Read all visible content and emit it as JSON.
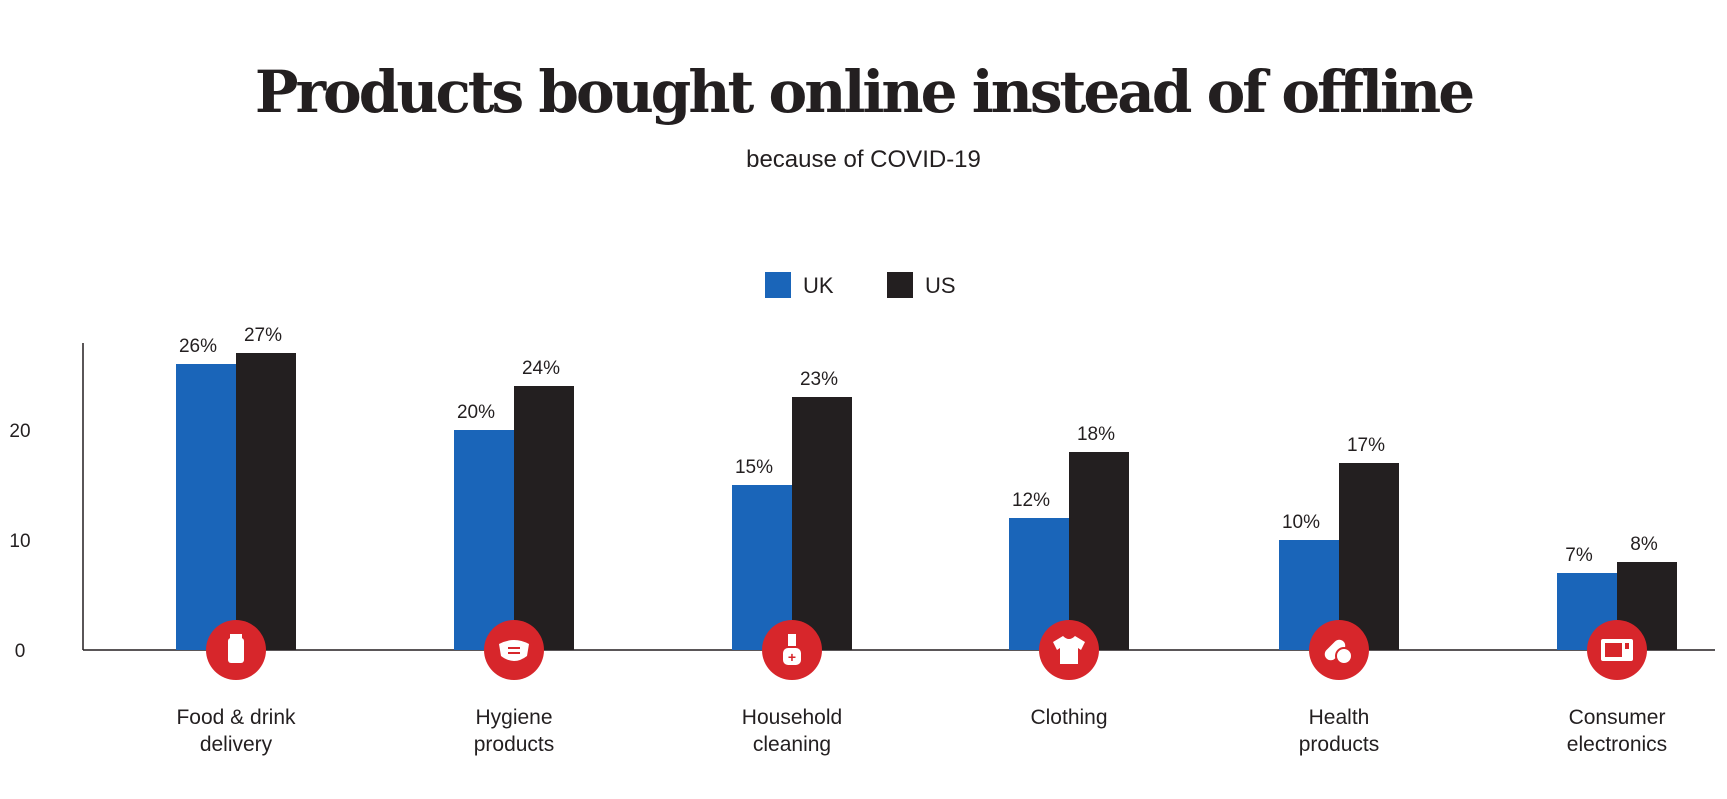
{
  "chart_data": {
    "type": "bar",
    "title": "Products bought online instead of offline",
    "subtitle": "because of COVID-19",
    "categories": [
      "Food & drink|delivery",
      "Hygiene|products",
      "Household|cleaning",
      "Clothing",
      "Health|products",
      "Consumer|electronics"
    ],
    "category_icons": [
      "milk-bottle-icon",
      "face-mask-icon",
      "spray-bottle-icon",
      "t-shirt-icon",
      "pills-icon",
      "microwave-icon"
    ],
    "series": [
      {
        "name": "UK",
        "color": "#1a65b9",
        "values": [
          26,
          20,
          15,
          12,
          10,
          7
        ],
        "labels": [
          "26%",
          "20%",
          "15%",
          "12%",
          "10%",
          "7%"
        ]
      },
      {
        "name": "US",
        "color": "#231f20",
        "values": [
          27,
          24,
          23,
          18,
          17,
          8
        ],
        "labels": [
          "27%",
          "24%",
          "23%",
          "18%",
          "17%",
          "8%"
        ]
      }
    ],
    "yticks": [
      "0",
      "10",
      "20"
    ],
    "ytick_values": [
      0,
      10,
      20
    ],
    "ylim": [
      0,
      28
    ],
    "xlabel": "",
    "ylabel": "",
    "legend": "top-center",
    "icon_color": "#d7262b",
    "grid": false
  }
}
